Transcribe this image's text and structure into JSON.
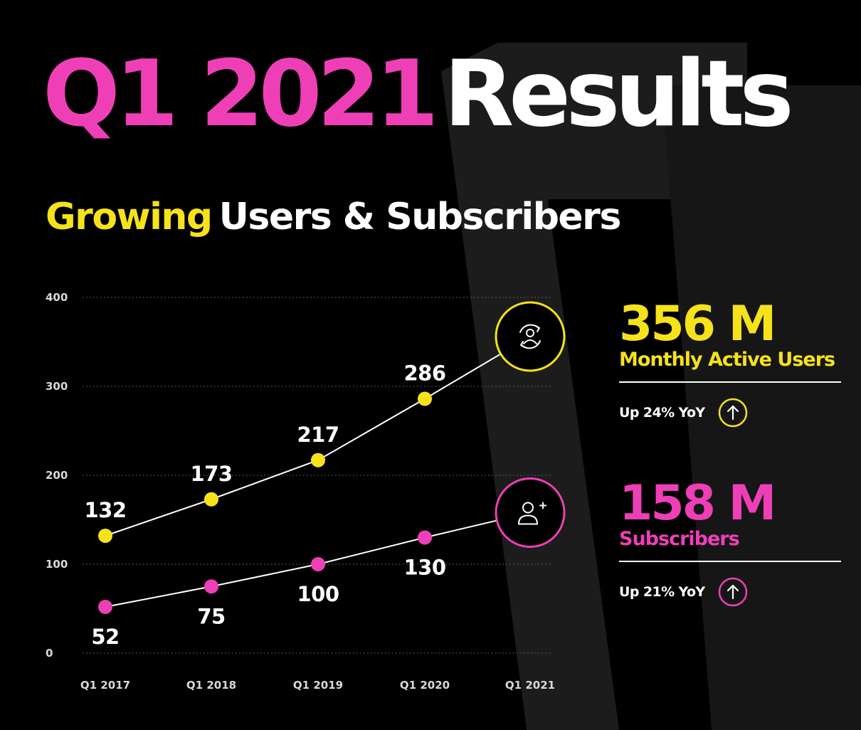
{
  "colors": {
    "background": "#000000",
    "pink": "#ee3fb6",
    "yellow": "#f5e21b",
    "white": "#ffffff",
    "shape": "#1c1c1c"
  },
  "header": {
    "title_highlight": "Q1 2021",
    "title_rest": "Results",
    "subtitle_highlight": "Growing",
    "subtitle_rest": "Users & Subscribers"
  },
  "chart_data": {
    "type": "line",
    "categories": [
      "Q1 2017",
      "Q1 2018",
      "Q1 2019",
      "Q1 2020",
      "Q1 2021"
    ],
    "yticks": [
      0,
      100,
      200,
      300,
      400
    ],
    "ylim": [
      0,
      400
    ],
    "grid": true,
    "series": [
      {
        "color": "#f5e21b",
        "values": [
          132,
          173,
          217,
          286,
          356
        ],
        "labels": [
          "132",
          "173",
          "217",
          "286",
          ""
        ],
        "end_icon": "user-sync-icon"
      },
      {
        "color": "#ee3fb6",
        "values": [
          52,
          75,
          100,
          130,
          158
        ],
        "labels": [
          "52",
          "75",
          "100",
          "130",
          ""
        ],
        "end_icon": "user-add-icon"
      }
    ]
  },
  "stats": [
    {
      "value": "356 M",
      "label": "Monthly Active Users",
      "change": "Up 24% YoY",
      "color": "#f5e21b",
      "icon": "arrow-up-circle-icon"
    },
    {
      "value": "158 M",
      "label": "Subscribers",
      "change": "Up 21% YoY",
      "color": "#ee3fb6",
      "icon": "arrow-up-circle-icon"
    }
  ]
}
